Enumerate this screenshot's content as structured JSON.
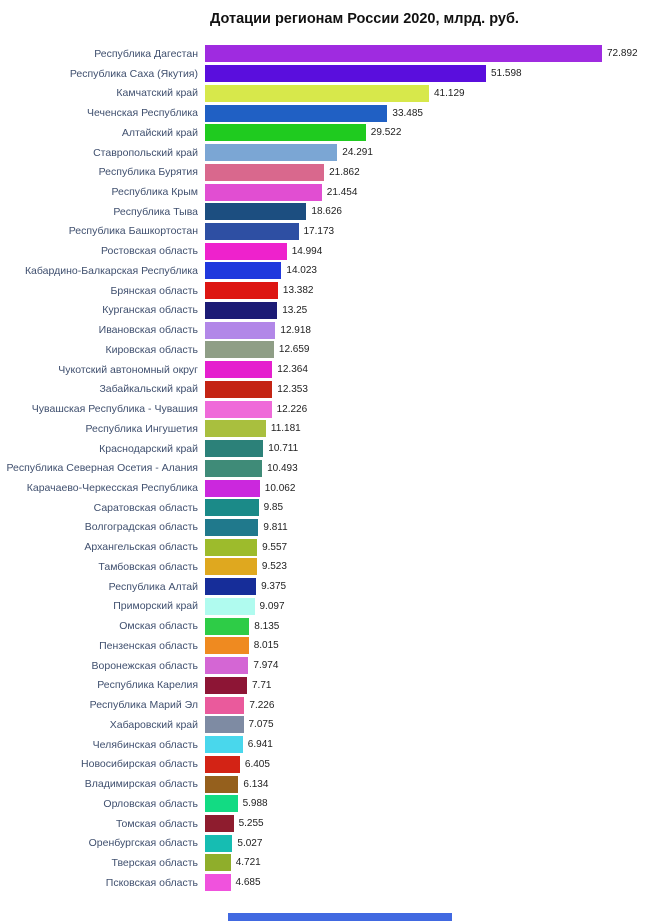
{
  "chart_data": {
    "type": "bar",
    "orientation": "horizontal",
    "title": "Дотации регионам России 2020, млрд. руб.",
    "xlabel": "",
    "ylabel": "",
    "xlim": [
      0,
      75
    ],
    "grid": false,
    "legend": false,
    "sort": "descending",
    "categories": [
      "Республика Дагестан",
      "Республика Саха (Якутия)",
      "Камчатский край",
      "Чеченская Республика",
      "Алтайский край",
      "Ставропольский край",
      "Республика Бурятия",
      "Республика Крым",
      "Республика Тыва",
      "Республика Башкортостан",
      "Ростовская область",
      "Кабардино-Балкарская Республика",
      "Брянская область",
      "Курганская область",
      "Ивановская область",
      "Кировская область",
      "Чукотский автономный округ",
      "Забайкальский край",
      "Чувашская Республика - Чувашия",
      "Республика Ингушетия",
      "Краснодарский край",
      "Республика Северная Осетия - Алания",
      "Карачаево-Черкесская Республика",
      "Саратовская область",
      "Волгоградская область",
      "Архангельская область",
      "Тамбовская область",
      "Республика Алтай",
      "Приморский край",
      "Омская область",
      "Пензенская область",
      "Воронежская область",
      "Республика Карелия",
      "Республика Марий Эл",
      "Хабаровский край",
      "Челябинская область",
      "Новосибирская область",
      "Владимирская область",
      "Орловская область",
      "Томская область",
      "Оренбургская область",
      "Тверская область",
      "Псковская область"
    ],
    "values": [
      72.892,
      51.598,
      41.129,
      33.485,
      29.522,
      24.291,
      21.862,
      21.454,
      18.626,
      17.173,
      14.994,
      14.023,
      13.382,
      13.25,
      12.918,
      12.659,
      12.364,
      12.353,
      12.226,
      11.181,
      10.711,
      10.493,
      10.062,
      9.85,
      9.811,
      9.557,
      9.523,
      9.375,
      9.097,
      8.135,
      8.015,
      7.974,
      7.71,
      7.226,
      7.075,
      6.941,
      6.405,
      6.134,
      5.988,
      5.255,
      5.027,
      4.721,
      4.685
    ],
    "value_labels": [
      "72.892",
      "51.598",
      "41.129",
      "33.485",
      "29.522",
      "24.291",
      "21.862",
      "21.454",
      "18.626",
      "17.173",
      "14.994",
      "14.023",
      "13.382",
      "13.25",
      "12.918",
      "12.659",
      "12.364",
      "12.353",
      "12.226",
      "11.181",
      "10.711",
      "10.493",
      "10.062",
      "9.85",
      "9.811",
      "9.557",
      "9.523",
      "9.375",
      "9.097",
      "8.135",
      "8.015",
      "7.974",
      "7.71",
      "7.226",
      "7.075",
      "6.941",
      "6.405",
      "6.134",
      "5.988",
      "5.255",
      "5.027",
      "4.721",
      "4.685"
    ],
    "colors": [
      "#9f2be0",
      "#5a0edd",
      "#d7e84b",
      "#2060c4",
      "#1fcb1f",
      "#7ba6d4",
      "#d9688d",
      "#e14ed2",
      "#1c4e80",
      "#2e4fa3",
      "#ee22cc",
      "#2038dd",
      "#dd1612",
      "#1c1b75",
      "#b287e8",
      "#8f9e86",
      "#e51fce",
      "#c42414",
      "#ef6ad9",
      "#a9bf3e",
      "#2c8179",
      "#3f8b78",
      "#cb28dd",
      "#1b8a88",
      "#20798c",
      "#9dbb2c",
      "#dfa81f",
      "#162d99",
      "#b0fbef",
      "#2ecc47",
      "#ef8a20",
      "#d466d4",
      "#8d1535",
      "#ea5a9c",
      "#7e8ba3",
      "#49d7ec",
      "#d32315",
      "#95601d",
      "#12db83",
      "#8e1c2e",
      "#16bdb2",
      "#8fae2b",
      "#f052dd"
    ]
  },
  "footer": {
    "partial_bar_color": "#4169e1"
  }
}
